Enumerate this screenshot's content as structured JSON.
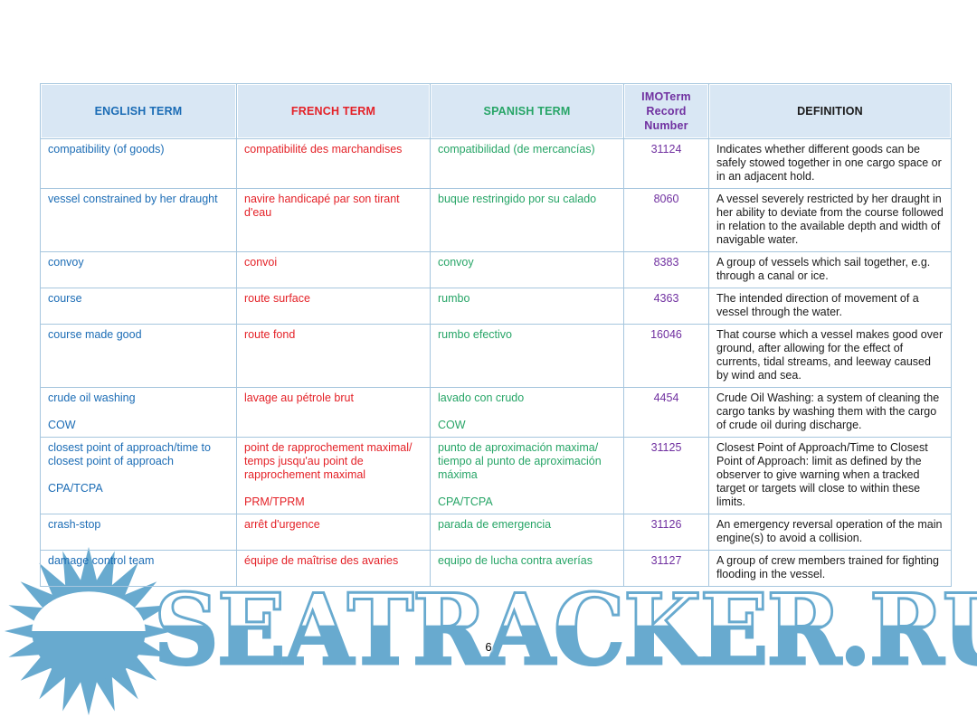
{
  "page": {
    "number": "6"
  },
  "colors": {
    "watermark_blue": "#68aacf",
    "header_bg": "#d9e7f4",
    "table_border": "#a6c6de"
  },
  "table": {
    "columns": [
      {
        "id": "en",
        "label": "ENGLISH TERM",
        "color": "#1b6cb5"
      },
      {
        "id": "fr",
        "label": "FRENCH TERM",
        "color": "#e42127"
      },
      {
        "id": "es",
        "label": "SPANISH TERM",
        "color": "#27a567"
      },
      {
        "id": "num",
        "label": "IMOTerm Record Number",
        "color": "#7030a0"
      },
      {
        "id": "def",
        "label": "DEFINITION",
        "color": "#1a1a1a"
      }
    ],
    "rows": [
      {
        "en": "compatibility (of goods)",
        "fr": "compatibilité des marchandises",
        "es": "compatibilidad (de mercancías)",
        "num": "31124",
        "def": "Indicates whether different goods can be safely stowed together in one cargo space or in an adjacent hold."
      },
      {
        "en": "vessel constrained by her draught",
        "fr": "navire handicapé par son tirant d'eau",
        "es": "buque restringido por su calado",
        "num": "8060",
        "def": "A vessel severely restricted by her draught in her ability to deviate from the course followed in relation to the available depth and width of navigable water."
      },
      {
        "en": "convoy",
        "fr": "convoi",
        "es": "convoy",
        "num": "8383",
        "def": "A group of vessels which sail together, e.g. through a canal or ice."
      },
      {
        "en": "course",
        "fr": "route surface",
        "es": "rumbo",
        "num": "4363",
        "def": "The intended direction of movement of a vessel through the water."
      },
      {
        "en": "course made good",
        "fr": "route fond",
        "es": "rumbo efectivo",
        "num": "16046",
        "def": "That course which a vessel makes good over ground, after allowing for the effect of currents, tidal streams, and leeway caused by wind and sea."
      },
      {
        "en": "crude oil washing",
        "en_abbr": "COW",
        "fr": "lavage au pétrole brut",
        "es": "lavado con crudo",
        "es_abbr": "COW",
        "num": "4454",
        "def": "Crude Oil Washing: a system of cleaning the cargo tanks by washing them with the cargo of crude oil during discharge."
      },
      {
        "en": "closest point of approach/time to closest point of approach",
        "en_abbr": "CPA/TCPA",
        "fr": "point de rapprochement maximal/ temps jusqu'au point de rapprochement maximal",
        "fr_abbr": "PRM/TPRM",
        "es": "punto de aproximación maxima/ tiempo al punto de aproximación máxima",
        "es_abbr": "CPA/TCPA",
        "num": "31125",
        "def": "Closest Point of Approach/Time to Closest Point of Approach: limit as defined by the observer to give warning when a tracked target or targets will close to within these limits."
      },
      {
        "en": "crash-stop",
        "fr": "arrêt d'urgence",
        "es": "parada de emergencia",
        "num": "31126",
        "def": "An emergency reversal operation of the main engine(s) to avoid a collision."
      },
      {
        "en": "damage control team",
        "fr": "équipe de maîtrise des avaries",
        "es": "equipo de lucha contra averías",
        "num": "31127",
        "def": "A group of crew members trained for fighting flooding in the vessel."
      }
    ]
  },
  "watermark": {
    "text": "SEATRACKER.RU",
    "sun_icon": "sun-logo"
  }
}
